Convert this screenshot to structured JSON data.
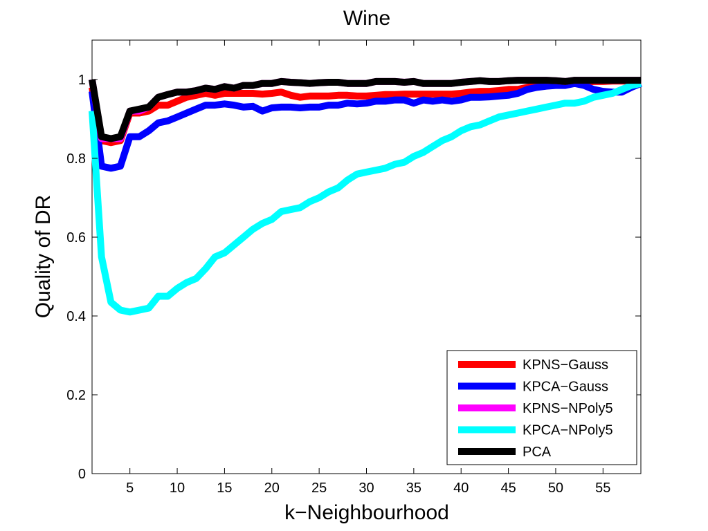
{
  "chart_data": {
    "type": "line",
    "title": "Wine",
    "xlabel": "k−Neighbourhood",
    "ylabel": "Quality of DR",
    "xlim": [
      1,
      59
    ],
    "ylim": [
      0,
      1.1
    ],
    "xticks": [
      5,
      10,
      15,
      20,
      25,
      30,
      35,
      40,
      45,
      50,
      55
    ],
    "yticks": [
      0,
      0.2,
      0.4,
      0.6,
      0.8,
      1
    ],
    "xtick_labels": [
      "5",
      "10",
      "15",
      "20",
      "25",
      "30",
      "35",
      "40",
      "45",
      "50",
      "55"
    ],
    "ytick_labels": [
      "0",
      "0.2",
      "0.4",
      "0.6",
      "0.8",
      "1"
    ],
    "grid": false,
    "legend_position": "bottom-right",
    "x": [
      1,
      2,
      3,
      4,
      5,
      6,
      7,
      8,
      9,
      10,
      11,
      12,
      13,
      14,
      15,
      16,
      17,
      18,
      19,
      20,
      21,
      22,
      23,
      24,
      25,
      26,
      27,
      28,
      29,
      30,
      31,
      32,
      33,
      34,
      35,
      36,
      37,
      38,
      39,
      40,
      41,
      42,
      43,
      44,
      45,
      46,
      47,
      48,
      49,
      50,
      51,
      52,
      53,
      54,
      55,
      56,
      57,
      58,
      59
    ],
    "series": [
      {
        "name": "KPNS−Gauss",
        "color": "#ff0000",
        "values": [
          0.98,
          0.845,
          0.84,
          0.845,
          0.915,
          0.915,
          0.92,
          0.935,
          0.935,
          0.945,
          0.955,
          0.96,
          0.965,
          0.96,
          0.965,
          0.965,
          0.965,
          0.965,
          0.963,
          0.965,
          0.968,
          0.96,
          0.955,
          0.958,
          0.958,
          0.958,
          0.96,
          0.96,
          0.958,
          0.958,
          0.96,
          0.962,
          0.962,
          0.963,
          0.963,
          0.963,
          0.963,
          0.963,
          0.963,
          0.965,
          0.968,
          0.97,
          0.97,
          0.972,
          0.975,
          0.975,
          0.98,
          0.985,
          0.99,
          0.99,
          0.99,
          0.992,
          0.993,
          0.995,
          0.995,
          0.996,
          0.996,
          0.996,
          0.997
        ]
      },
      {
        "name": "KPCA−Gauss",
        "color": "#0000ff",
        "values": [
          0.97,
          0.78,
          0.775,
          0.78,
          0.855,
          0.855,
          0.87,
          0.89,
          0.895,
          0.905,
          0.915,
          0.925,
          0.935,
          0.935,
          0.938,
          0.935,
          0.93,
          0.932,
          0.92,
          0.928,
          0.93,
          0.93,
          0.928,
          0.93,
          0.93,
          0.935,
          0.935,
          0.94,
          0.938,
          0.94,
          0.945,
          0.945,
          0.948,
          0.948,
          0.94,
          0.948,
          0.945,
          0.948,
          0.945,
          0.948,
          0.955,
          0.955,
          0.956,
          0.958,
          0.96,
          0.965,
          0.975,
          0.98,
          0.983,
          0.985,
          0.985,
          0.99,
          0.985,
          0.975,
          0.97,
          0.968,
          0.968,
          0.98,
          0.99
        ]
      },
      {
        "name": "KPNS−NPoly5",
        "color": "#ff00ff",
        "values": [
          1.0,
          0.85,
          0.85,
          0.85,
          0.92,
          0.92,
          0.93,
          0.955,
          0.962,
          0.968,
          0.968,
          0.972,
          0.978,
          0.975,
          0.982,
          0.978,
          0.985,
          0.985,
          0.99,
          0.99,
          0.995,
          0.993,
          0.992,
          0.99,
          0.992,
          0.993,
          0.993,
          0.99,
          0.99,
          0.99,
          0.995,
          0.995,
          0.995,
          0.993,
          0.995,
          0.99,
          0.99,
          0.99,
          0.99,
          0.993,
          0.995,
          0.997,
          0.995,
          0.995,
          0.997,
          0.998,
          0.998,
          0.998,
          0.998,
          0.997,
          0.995,
          0.998,
          0.998,
          0.998,
          0.998,
          0.998,
          0.998,
          0.998,
          0.998
        ]
      },
      {
        "name": "KPCA−NPoly5",
        "color": "#00ffff",
        "values": [
          0.92,
          0.55,
          0.435,
          0.415,
          0.41,
          0.415,
          0.42,
          0.45,
          0.45,
          0.47,
          0.485,
          0.495,
          0.52,
          0.55,
          0.56,
          0.58,
          0.6,
          0.62,
          0.635,
          0.645,
          0.665,
          0.67,
          0.675,
          0.69,
          0.7,
          0.715,
          0.725,
          0.745,
          0.76,
          0.765,
          0.77,
          0.775,
          0.785,
          0.79,
          0.805,
          0.815,
          0.83,
          0.845,
          0.855,
          0.87,
          0.88,
          0.885,
          0.895,
          0.905,
          0.91,
          0.915,
          0.92,
          0.925,
          0.93,
          0.935,
          0.94,
          0.94,
          0.945,
          0.955,
          0.96,
          0.965,
          0.975,
          0.985,
          0.99
        ]
      },
      {
        "name": "PCA",
        "color": "#000000",
        "values": [
          1.0,
          0.855,
          0.85,
          0.855,
          0.92,
          0.925,
          0.93,
          0.955,
          0.962,
          0.968,
          0.968,
          0.972,
          0.978,
          0.975,
          0.982,
          0.978,
          0.985,
          0.985,
          0.99,
          0.99,
          0.995,
          0.993,
          0.992,
          0.99,
          0.992,
          0.993,
          0.993,
          0.99,
          0.99,
          0.99,
          0.995,
          0.995,
          0.995,
          0.993,
          0.995,
          0.99,
          0.99,
          0.99,
          0.99,
          0.993,
          0.995,
          0.997,
          0.995,
          0.995,
          0.997,
          0.998,
          0.998,
          0.998,
          0.998,
          0.997,
          0.995,
          0.998,
          0.998,
          0.998,
          0.998,
          0.998,
          0.998,
          0.998,
          0.998
        ]
      }
    ]
  }
}
